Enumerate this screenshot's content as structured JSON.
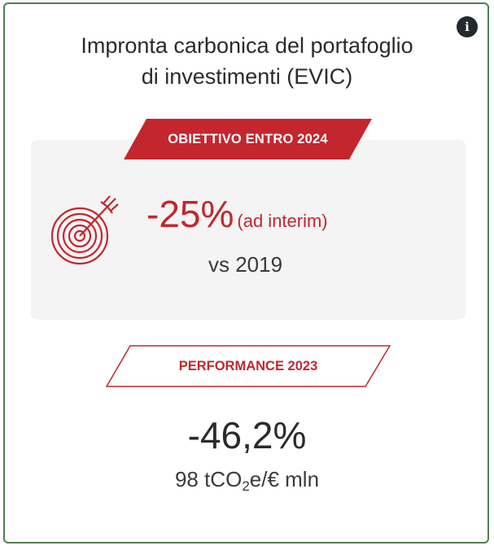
{
  "info_button": {
    "label": "i"
  },
  "title": {
    "line1": "Impronta carbonica del portafoglio",
    "line2": "di investimenti (EVIC)"
  },
  "target": {
    "badge_label": "OBIETTIVO ENTRO 2024",
    "value": "-25%",
    "qualifier": "(ad interim)",
    "baseline": "vs 2019",
    "icon": "target-arrow-icon"
  },
  "performance": {
    "badge_label": "PERFORMANCE 2023",
    "value": "-46,2%",
    "unit_prefix": "98 tCO",
    "unit_sub": "2",
    "unit_suffix": "e/€ mln"
  },
  "colors": {
    "accent_red": "#c4262e",
    "border_green": "#4f7f4f",
    "panel_gray": "#f4f4f4",
    "info_dark": "#232a2e"
  }
}
